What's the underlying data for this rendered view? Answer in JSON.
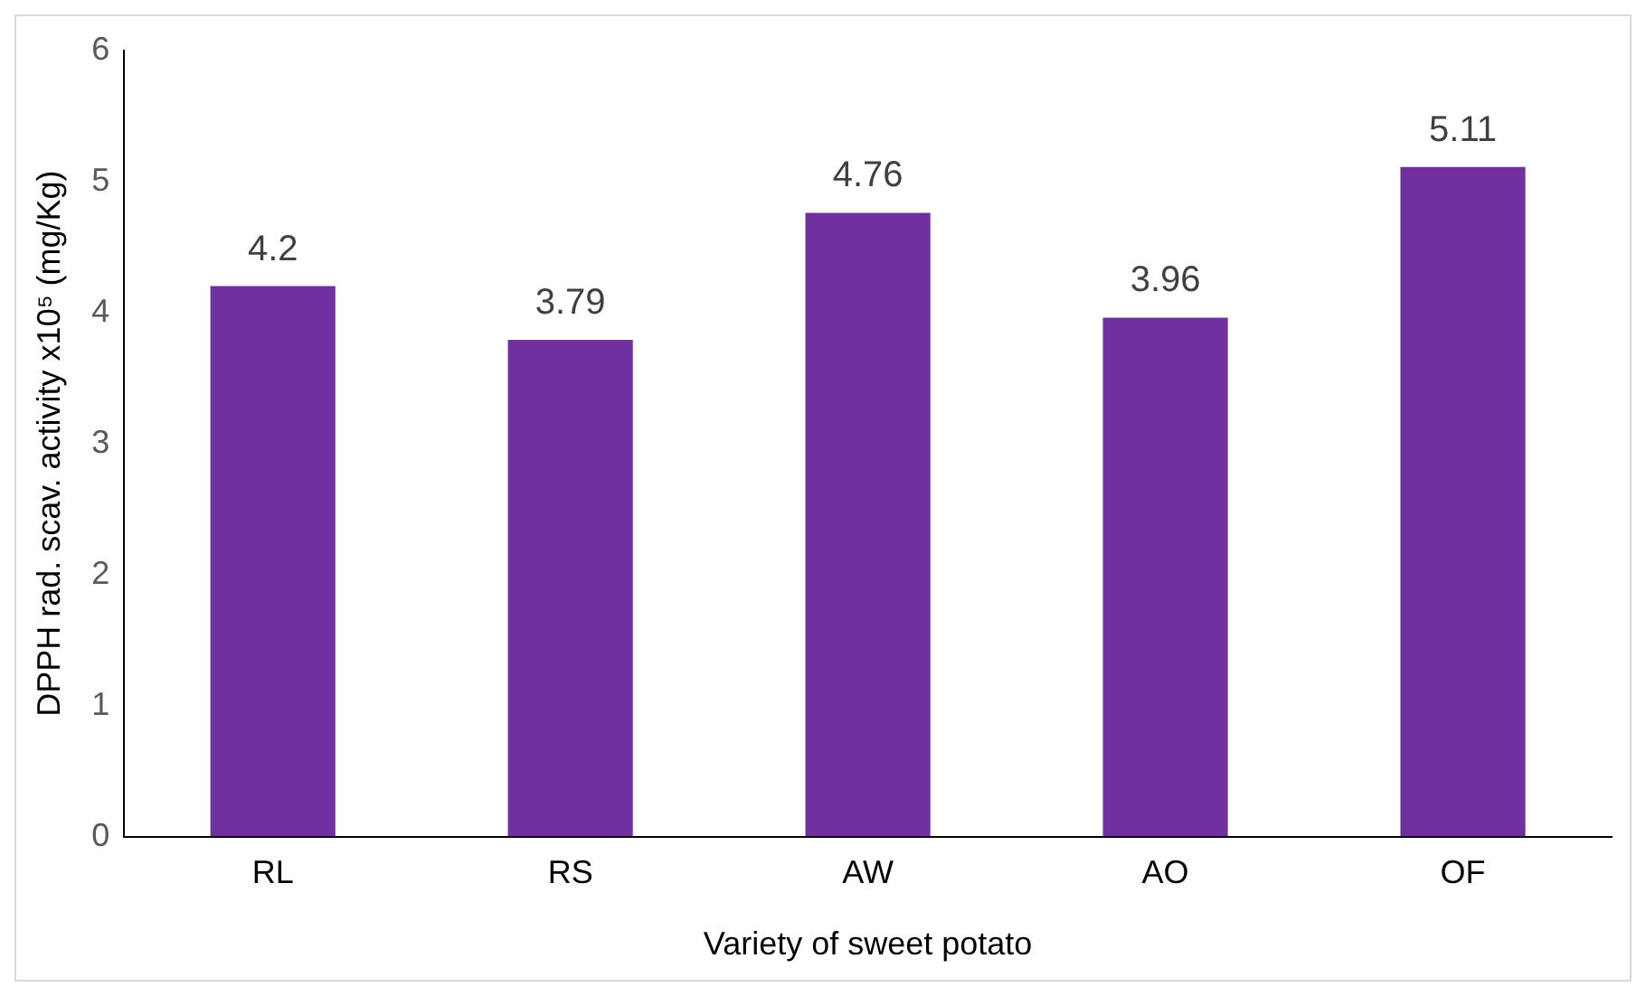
{
  "chart_data": {
    "type": "bar",
    "xlabel": "Variety of sweet potato",
    "ylabel": "DPPH rad. scav. activity x10⁵ (mg/Kg)",
    "categories": [
      "RL",
      "RS",
      "AW",
      "AO",
      "OF"
    ],
    "values": [
      4.2,
      3.79,
      4.76,
      3.96,
      5.11
    ],
    "color": "#7030a0",
    "ylim": [
      0,
      6
    ],
    "yticks": [
      0,
      1,
      2,
      3,
      4,
      5,
      6
    ],
    "grid": false,
    "legend": false,
    "data_labels": true
  }
}
